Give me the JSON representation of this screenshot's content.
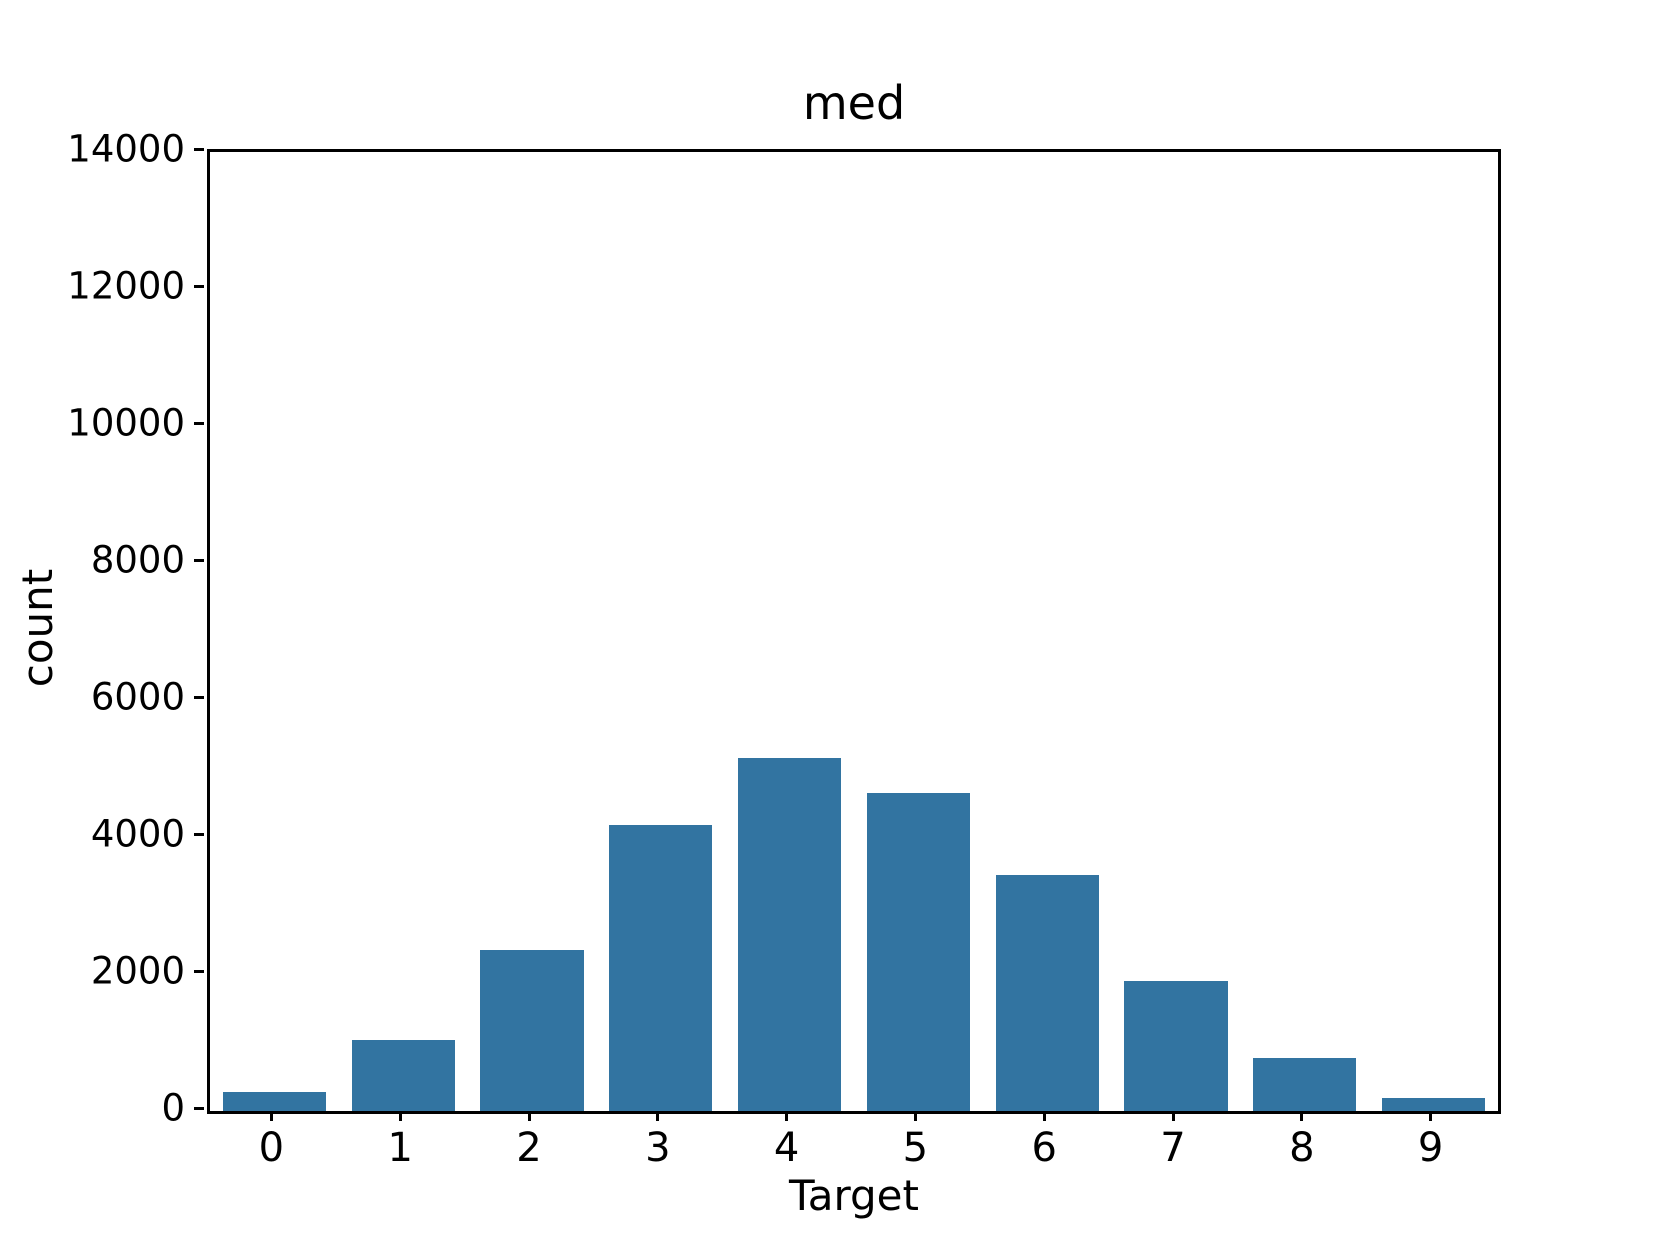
{
  "title": "med",
  "x_axis_label": "Target",
  "y_axis_label": "count",
  "colors": {
    "bar_fill": "#3274a1",
    "spine": "#000000",
    "background": "#ffffff",
    "text": "#000000"
  },
  "chart_data": {
    "type": "bar",
    "title": "med",
    "xlabel": "Target",
    "ylabel": "count",
    "categories": [
      "0",
      "1",
      "2",
      "3",
      "4",
      "5",
      "6",
      "7",
      "8",
      "9"
    ],
    "values": [
      280,
      1040,
      2350,
      4170,
      5150,
      4640,
      3450,
      1900,
      780,
      190
    ],
    "ylim": [
      0,
      14000
    ],
    "yticks": [
      0,
      2000,
      4000,
      6000,
      8000,
      10000,
      12000,
      14000
    ],
    "grid": false,
    "legend_position": "none",
    "bar_width_fraction": 0.8,
    "bar_color": "#3274a1"
  }
}
